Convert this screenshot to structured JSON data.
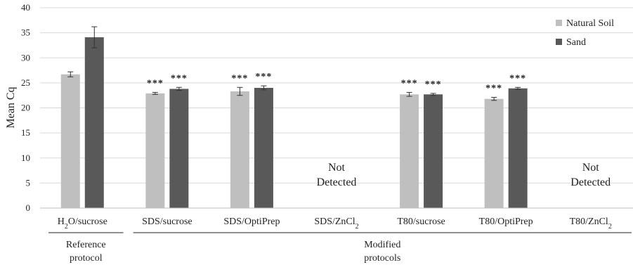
{
  "chart_data": {
    "type": "bar",
    "ylabel": "Mean Cq",
    "ylim": [
      0,
      40
    ],
    "yticks": [
      0,
      5,
      10,
      15,
      20,
      25,
      30,
      35,
      40
    ],
    "grid": true,
    "legend_position": "top-right",
    "categories": [
      {
        "pre": "H",
        "sub": "2",
        "post": "O/sucrose"
      },
      {
        "pre": "SDS/sucrose",
        "sub": "",
        "post": ""
      },
      {
        "pre": "SDS/OptiPrep",
        "sub": "",
        "post": ""
      },
      {
        "pre": "SDS/ZnCl",
        "sub": "2",
        "post": ""
      },
      {
        "pre": "T80/sucrose",
        "sub": "",
        "post": ""
      },
      {
        "pre": "T80/OptiPrep",
        "sub": "",
        "post": ""
      },
      {
        "pre": "T80/ZnCl",
        "sub": "2",
        "post": ""
      }
    ],
    "series": [
      {
        "name": "Natural Soil",
        "color": "#bfbfbf",
        "values": [
          26.7,
          22.9,
          23.3,
          null,
          22.7,
          21.8,
          null
        ],
        "errors": [
          0.5,
          0.2,
          0.8,
          null,
          0.4,
          0.3,
          null
        ],
        "significance": [
          "",
          "***",
          "***",
          "",
          "***",
          "***",
          ""
        ]
      },
      {
        "name": "Sand",
        "color": "#595959",
        "values": [
          34.1,
          23.8,
          24.0,
          null,
          22.7,
          23.9,
          null
        ],
        "errors": [
          2.1,
          0.3,
          0.4,
          null,
          0.2,
          0.2,
          null
        ],
        "significance": [
          "",
          "***",
          "***",
          "",
          "***",
          "***",
          ""
        ]
      }
    ],
    "not_detected": [
      {
        "category_index": 3,
        "line1": "Not",
        "line2": "Detected"
      },
      {
        "category_index": 6,
        "line1": "Not",
        "line2": "Detected"
      }
    ],
    "groups": [
      {
        "line1": "Reference",
        "line2": "protocol",
        "from": 0,
        "to": 0
      },
      {
        "line1": "Modified",
        "line2": "protocols",
        "from": 1,
        "to": 6
      }
    ]
  }
}
